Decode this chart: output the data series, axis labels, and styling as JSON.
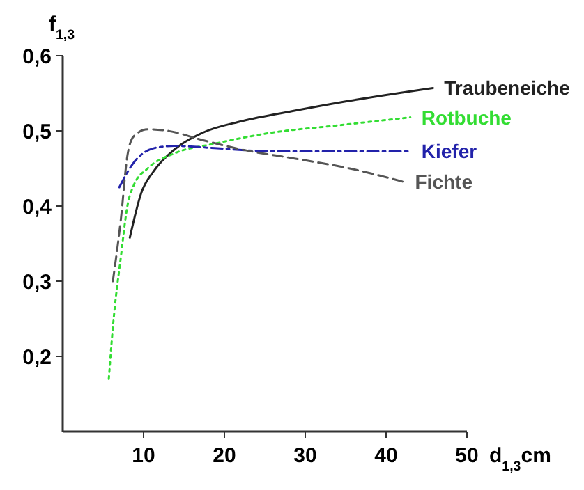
{
  "chart_data": {
    "type": "line",
    "xlabel": "d$_{1,3}$cm",
    "ylabel": "f$_{1,3}$",
    "xlim": [
      0,
      50
    ],
    "ylim": [
      0.1,
      0.6
    ],
    "xticks": [
      10,
      20,
      30,
      40,
      50
    ],
    "yticks": [
      {
        "value": 0.2,
        "label": "0,2"
      },
      {
        "value": 0.3,
        "label": "0,3"
      },
      {
        "value": 0.4,
        "label": "0,4"
      },
      {
        "value": 0.5,
        "label": "0,5"
      },
      {
        "value": 0.6,
        "label": "0,6"
      }
    ],
    "grid": false,
    "marker": "none",
    "series": [
      {
        "name": "Traubeneiche",
        "color": "#222222",
        "line_style": "solid",
        "x": [
          8.3,
          9.7,
          11.3,
          13.8,
          17.2,
          22.2,
          28.8,
          35.5,
          45.8
        ],
        "values": [
          0.358,
          0.417,
          0.447,
          0.475,
          0.497,
          0.513,
          0.527,
          0.54,
          0.557
        ]
      },
      {
        "name": "Rotbuche",
        "color": "#33dd33",
        "line_style": "dotted",
        "x": [
          5.7,
          6.3,
          7.2,
          8,
          8.8,
          10.5,
          13.8,
          18.8,
          25.5,
          33.8,
          43
        ],
        "values": [
          0.17,
          0.25,
          0.333,
          0.4,
          0.428,
          0.45,
          0.47,
          0.483,
          0.497,
          0.507,
          0.518
        ]
      },
      {
        "name": "Kiefer",
        "color": "#2222aa",
        "line_style": "dashdot",
        "x": [
          7,
          8.8,
          11.3,
          13.8,
          18.8,
          25.5,
          33.8,
          43
        ],
        "values": [
          0.425,
          0.458,
          0.477,
          0.48,
          0.477,
          0.473,
          0.473,
          0.473
        ]
      },
      {
        "name": "Fichte",
        "color": "#555555",
        "line_style": "dashed",
        "x": [
          6.2,
          7.2,
          8,
          8.8,
          10.5,
          13,
          17.2,
          22.2,
          28.8,
          35.5,
          42.2
        ],
        "values": [
          0.3,
          0.383,
          0.467,
          0.493,
          0.502,
          0.5,
          0.488,
          0.475,
          0.463,
          0.45,
          0.432
        ]
      }
    ]
  }
}
